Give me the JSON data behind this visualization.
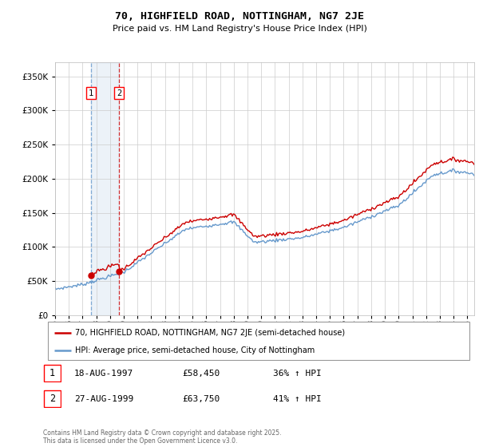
{
  "title": "70, HIGHFIELD ROAD, NOTTINGHAM, NG7 2JE",
  "subtitle": "Price paid vs. HM Land Registry's House Price Index (HPI)",
  "legend_line1": "70, HIGHFIELD ROAD, NOTTINGHAM, NG7 2JE (semi-detached house)",
  "legend_line2": "HPI: Average price, semi-detached house, City of Nottingham",
  "transaction1_date": "18-AUG-1997",
  "transaction1_price": "£58,450",
  "transaction1_hpi": "36% ↑ HPI",
  "transaction2_date": "27-AUG-1999",
  "transaction2_price": "£63,750",
  "transaction2_hpi": "41% ↑ HPI",
  "footer": "Contains HM Land Registry data © Crown copyright and database right 2025.\nThis data is licensed under the Open Government Licence v3.0.",
  "ylim": [
    0,
    370000
  ],
  "red_color": "#cc0000",
  "blue_color": "#6699cc",
  "t1_x": 1997.62,
  "t2_x": 1999.65,
  "t1_y": 58450,
  "t2_y": 63750,
  "background_color": "#ffffff",
  "grid_color": "#cccccc",
  "xmin": 1995.0,
  "xmax": 2025.5
}
